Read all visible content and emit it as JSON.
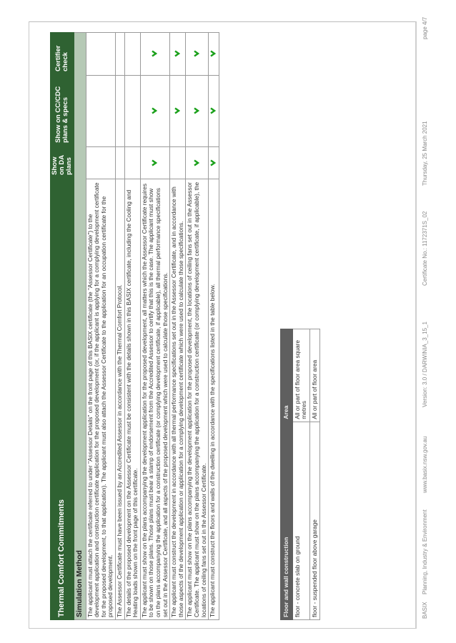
{
  "commitments": {
    "title": "Thermal Comfort Commitments",
    "columns": [
      "Show on DA plans",
      "Show on CC/CDC plans & specs",
      "Certifier check"
    ],
    "section": "Simulation Method",
    "rows": [
      {
        "text": "The applicant must attach the certificate referred to under \"Assessor Details\" on the front page of this BASIX certificate (the \"Assessor Certificate\") to the development application and construction certificate application for the proposed development (or, if the applicant is applying for a complying development certificate for the proposed development, to that application). The applicant must also attach the Assessor Certificate to the application for an occupation certificate for the proposed development.",
        "da": false,
        "cc": false,
        "cert": false
      },
      {
        "text": "The Assessor Certificate must have been issued by an Accredited Assessor in accordance with the Thermal Comfort Protocol.",
        "da": false,
        "cc": false,
        "cert": false
      },
      {
        "text": "The details of the proposed development on the Assessor Certificate must be consistent with the details shown in this BASIX certificate, including the Cooling and Heating loads shown on the front page of this certificate.",
        "da": false,
        "cc": false,
        "cert": false
      },
      {
        "text": "The applicant must show on the plans accompanying the development application for the proposed development, all matters which the Assessor Certificate requires to be shown on those plans. Those plans must bear a stamp of endorsement from the Accredited Assessor to certify that this is the case. The applicant must show on the plans accompanying the application for a construction certificate (or complying development certificate, if applicable), all thermal performance specifications set out in the Assessor Certificate, and all aspects of the proposed development which were used to calculate those specifications.",
        "da": true,
        "cc": true,
        "cert": true
      },
      {
        "text": "The applicant must construct the development in accordance with all thermal performance specifications set out in the Assessor Certificate, and in accordance with those aspects of the development application or application for a complying development certificate which were used to calculate those specifications.",
        "da": false,
        "cc": true,
        "cert": true
      },
      {
        "text": "The applicant must show on the plans accompanying the development application for the proposed development, the locations of ceiling fans set out in the Assessor Certificate. The applicant must show on the plans accompanying the application for a construction certificate (or complying development certificate, if applicable), the locations of ceiling fans set out in the Assessor Certificate.",
        "da": true,
        "cc": true,
        "cert": true
      },
      {
        "text": "The applicant must construct the floors and walls of the dwelling in accordance with the specifications listed in the table below.",
        "da": true,
        "cc": true,
        "cert": true
      }
    ]
  },
  "floor_table": {
    "headers": [
      "Floor and wall construction",
      "Area"
    ],
    "rows": [
      [
        "floor - concrete slab on ground",
        "All or part of floor area square metres"
      ],
      [
        "floor - suspended floor above garage",
        "All or part of floor area"
      ]
    ]
  },
  "footer": {
    "brand": "BASIX",
    "department": "Planning, Industry & Environment",
    "website": "www.basix.nsw.gov.au",
    "version": "Version: 3.0 / DARWINIA_3_15_1",
    "certificate": "Certificate No.: 1172371S_02",
    "date": "Thursday, 25 March 2021",
    "page": "page 4/7"
  },
  "colors": {
    "header_green": "#2f6232",
    "section_green": "#b5c9b5",
    "tick_green": "#1aa01a",
    "floor_header": "#5f5f5f"
  },
  "icons": {
    "tick": "check-chevron-icon"
  }
}
